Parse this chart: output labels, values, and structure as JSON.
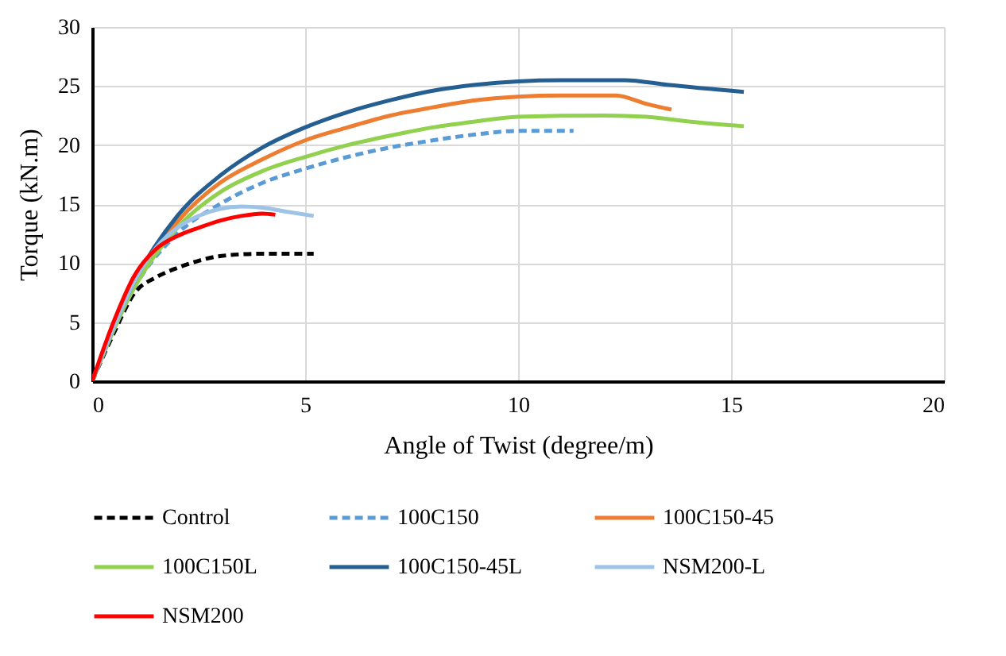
{
  "chart_data": {
    "type": "line",
    "xlabel": "Angle of Twist (degree/m)",
    "ylabel": "Torque (kN.m)",
    "xlim": [
      0,
      20
    ],
    "xticks": [
      0,
      5,
      10,
      15,
      20
    ],
    "ylim": [
      0,
      30
    ],
    "yticks": [
      0,
      5,
      10,
      15,
      20,
      25,
      30
    ],
    "grid": true,
    "legend": "bottom",
    "marker": "none",
    "series": [
      {
        "name": "Control",
        "color": "#000000",
        "line_style": "dashed",
        "x": [
          0,
          0.5,
          1,
          1.5,
          2,
          2.5,
          3,
          4,
          5.2
        ],
        "values": [
          0,
          4,
          7.5,
          8.8,
          9.6,
          10.2,
          10.6,
          10.8,
          10.8
        ]
      },
      {
        "name": "100C150",
        "color": "#5b9bd5",
        "line_style": "dashed",
        "x": [
          0,
          1,
          2,
          3,
          4,
          5,
          6,
          7,
          8,
          9,
          10,
          11.3
        ],
        "values": [
          0,
          8,
          12.5,
          15,
          16.8,
          18,
          19,
          19.8,
          20.4,
          20.9,
          21.2,
          21.2
        ]
      },
      {
        "name": "100C150-45",
        "color": "#ed7d31",
        "line_style": "solid",
        "x": [
          0,
          1,
          2,
          3,
          4,
          5,
          6,
          7,
          8,
          9,
          10,
          11,
          12.3,
          13,
          13.6
        ],
        "values": [
          0,
          8.2,
          13.5,
          16.8,
          18.8,
          20.4,
          21.5,
          22.5,
          23.2,
          23.8,
          24.1,
          24.2,
          24.2,
          23.5,
          23
        ]
      },
      {
        "name": "100C150L",
        "color": "#92d050",
        "line_style": "solid",
        "x": [
          0,
          1,
          2,
          3,
          4,
          5,
          6,
          7,
          8,
          9,
          10,
          12,
          13,
          14,
          15.3
        ],
        "values": [
          0,
          8,
          13,
          16,
          17.8,
          19,
          20,
          20.8,
          21.5,
          22,
          22.4,
          22.5,
          22.4,
          22,
          21.6
        ]
      },
      {
        "name": "100C150-45L",
        "color": "#255e91",
        "line_style": "solid",
        "x": [
          0,
          1,
          2,
          3,
          4,
          5,
          6,
          7,
          8,
          9,
          10,
          11,
          12.5,
          13.5,
          15.3
        ],
        "values": [
          0,
          8.5,
          14,
          17.4,
          19.8,
          21.5,
          22.8,
          23.8,
          24.6,
          25.1,
          25.4,
          25.5,
          25.5,
          25.1,
          24.5
        ]
      },
      {
        "name": "NSM200-L",
        "color": "#9dc3e6",
        "line_style": "solid",
        "x": [
          0,
          0.5,
          1,
          1.5,
          2,
          2.5,
          3,
          3.5,
          4,
          4.5,
          5.2
        ],
        "values": [
          0,
          4.5,
          8.5,
          11.3,
          13,
          14,
          14.6,
          14.8,
          14.7,
          14.4,
          14
        ]
      },
      {
        "name": "NSM200",
        "color": "#ff0000",
        "line_style": "solid",
        "x": [
          0,
          0.5,
          1,
          1.5,
          2,
          2.5,
          3,
          3.5,
          4,
          4.3
        ],
        "values": [
          0,
          5,
          9,
          11.2,
          12.3,
          13,
          13.6,
          14,
          14.2,
          14.1
        ]
      }
    ]
  }
}
